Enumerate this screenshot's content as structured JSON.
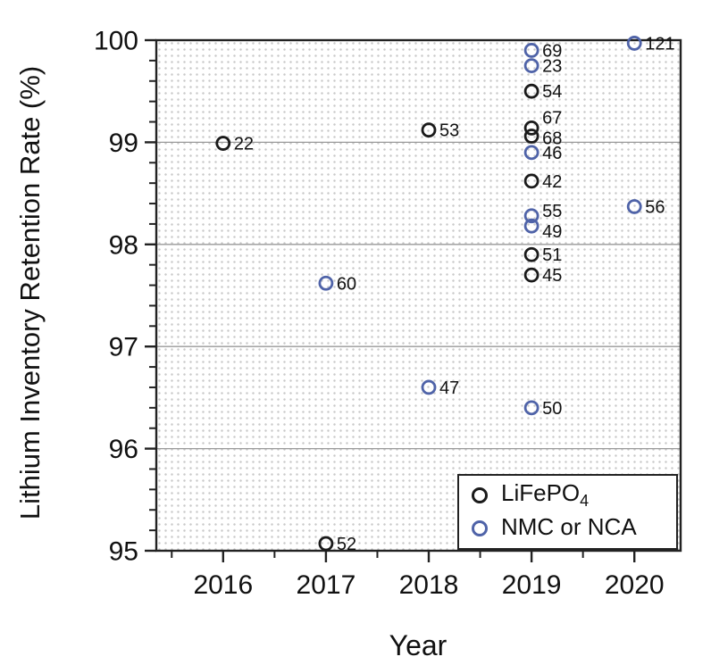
{
  "figure": {
    "kind": "scatter-plot-figure"
  },
  "chart_data": {
    "type": "scatter",
    "title": "",
    "xlabel": "Year",
    "ylabel": "Lithium Inventory Retention Rate (%)",
    "xlim": [
      2015.35,
      2020.45
    ],
    "ylim": [
      95,
      100
    ],
    "x_major_ticks": [
      2016,
      2017,
      2018,
      2019,
      2020
    ],
    "x_minor_step": 0.5,
    "y_major_ticks": [
      95,
      96,
      97,
      98,
      99,
      100
    ],
    "y_minor_step": 0.2,
    "grid_y_values": [
      96,
      97,
      98,
      99
    ],
    "grid_color": "#9a9a9a",
    "frame_color": "#222222",
    "legend_position": "lower right",
    "series": [
      {
        "name": "LiFePO4",
        "name_base": "LiFePO",
        "name_sub": "4",
        "color": "#1a1a1a",
        "points": [
          {
            "x": 2016,
            "y": 98.99,
            "label": "22"
          },
          {
            "x": 2018,
            "y": 99.12,
            "label": "53"
          },
          {
            "x": 2019,
            "y": 99.5,
            "label": "54"
          },
          {
            "x": 2019,
            "y": 99.14,
            "label": "67",
            "label_dy": -12
          },
          {
            "x": 2019,
            "y": 99.06,
            "label": "68",
            "label_dy": 2
          },
          {
            "x": 2019,
            "y": 98.62,
            "label": "42"
          },
          {
            "x": 2019,
            "y": 97.9,
            "label": "51"
          },
          {
            "x": 2019,
            "y": 97.7,
            "label": "45"
          },
          {
            "x": 2017,
            "y": 95.07,
            "label": "52"
          }
        ]
      },
      {
        "name": "NMC or NCA",
        "name_base": "NMC or NCA",
        "name_sub": "",
        "color": "#4f63a8",
        "points": [
          {
            "x": 2019,
            "y": 99.9,
            "label": "69"
          },
          {
            "x": 2019,
            "y": 99.75,
            "label": "23"
          },
          {
            "x": 2019,
            "y": 98.9,
            "label": "46"
          },
          {
            "x": 2019,
            "y": 98.28,
            "label": "55",
            "label_dy": -6
          },
          {
            "x": 2019,
            "y": 98.18,
            "label": "49",
            "label_dy": 6
          },
          {
            "x": 2019,
            "y": 96.4,
            "label": "50"
          },
          {
            "x": 2020,
            "y": 99.97,
            "label": "121"
          },
          {
            "x": 2020,
            "y": 98.37,
            "label": "56"
          },
          {
            "x": 2017,
            "y": 97.62,
            "label": "60"
          },
          {
            "x": 2018,
            "y": 96.6,
            "label": "47"
          }
        ]
      }
    ]
  }
}
